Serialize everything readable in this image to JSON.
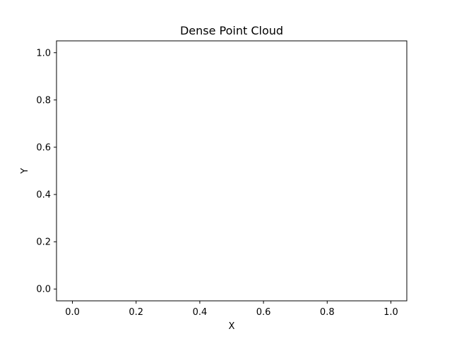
{
  "chart_data": {
    "type": "scatter",
    "title": "Dense Point Cloud",
    "xlabel": "X",
    "ylabel": "Y",
    "xlim": [
      -0.05,
      1.05
    ],
    "ylim": [
      -0.05,
      1.05
    ],
    "x_ticks": [
      0.0,
      0.2,
      0.4,
      0.6,
      0.8,
      1.0
    ],
    "y_ticks": [
      0.0,
      0.2,
      0.4,
      0.6,
      0.8,
      1.0
    ],
    "x_tick_labels": [
      "0.0",
      "0.2",
      "0.4",
      "0.6",
      "0.8",
      "1.0"
    ],
    "y_tick_labels": [
      "0.0",
      "0.2",
      "0.4",
      "0.6",
      "0.8",
      "1.0"
    ],
    "grid": false,
    "series": [
      {
        "x": [],
        "y": []
      }
    ],
    "colors": {
      "axis": "#000000",
      "background": "#ffffff"
    }
  }
}
